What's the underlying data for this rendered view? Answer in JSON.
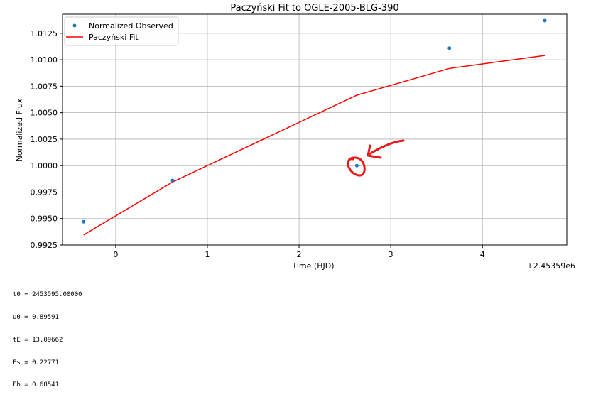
{
  "chart_data": {
    "type": "scatter",
    "title": "Paczyński Fit to OGLE-2005-BLG-390",
    "xlabel": "Time (HJD)",
    "ylabel": "Normalized Flux",
    "x_offset_label": "+2.45359e6",
    "xlim": [
      -0.58,
      4.92
    ],
    "ylim": [
      0.9925,
      1.0143
    ],
    "grid": true,
    "legend_position": "upper left",
    "x_ticks": [
      0,
      1,
      2,
      3,
      4
    ],
    "x_tick_labels": [
      "0",
      "1",
      "2",
      "3",
      "4"
    ],
    "y_ticks": [
      0.9925,
      0.995,
      0.9975,
      1.0,
      1.0025,
      1.005,
      1.0075,
      1.01,
      1.0125
    ],
    "y_tick_labels": [
      "0.9925",
      "0.9950",
      "0.9975",
      "1.0000",
      "1.0025",
      "1.0050",
      "1.0075",
      "1.0100",
      "1.0125"
    ],
    "series": [
      {
        "name": "Normalized Observed",
        "kind": "scatter",
        "color": "#1f77b4",
        "x": [
          -0.35,
          0.62,
          2.63,
          3.64,
          4.68
        ],
        "y": [
          0.9947,
          0.9986,
          1.0,
          1.0111,
          1.0137
        ]
      },
      {
        "name": "Paczyński Fit",
        "kind": "line",
        "color": "#ff0000",
        "x": [
          -0.35,
          0.62,
          2.63,
          3.64,
          4.68
        ],
        "y": [
          0.99345,
          0.99845,
          1.00665,
          1.00918,
          1.0104
        ]
      }
    ],
    "annotation": {
      "kind": "hand-drawn circle with arrow",
      "color": "#e8191b",
      "target_x": 2.63,
      "target_y": 1.0
    }
  },
  "fit_parameters": [
    "t0 = 2453595.00000",
    "u0 = 0.89591",
    "tE = 13.09662",
    "Fs = 0.22771",
    "Fb = 0.68541"
  ]
}
